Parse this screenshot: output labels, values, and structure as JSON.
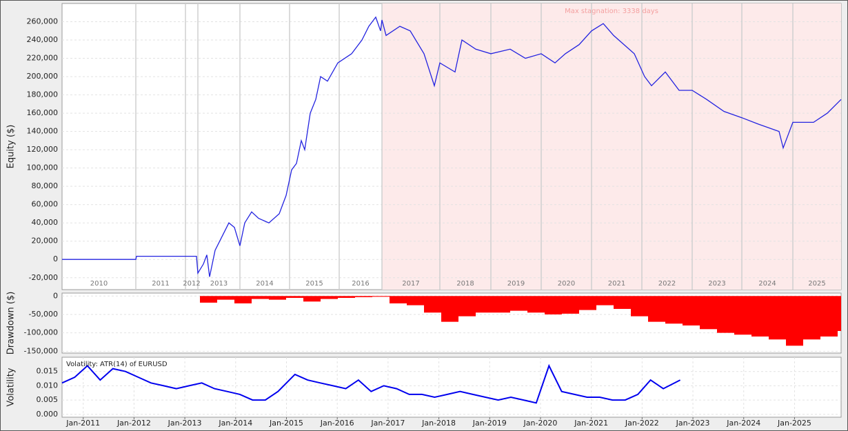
{
  "chart_data": [
    {
      "type": "line",
      "ylabel": "Equity ($)",
      "annotation": "Max stagnation: 3338 days",
      "stagnation_start": 464,
      "stagnation_color": "#fdeaea",
      "xlim": [
        0,
        1130
      ],
      "ylim": [
        -33000,
        280000
      ],
      "yticks": [
        {
          "value": 260000,
          "label": "260,000"
        },
        {
          "value": 240000,
          "label": "240,000"
        },
        {
          "value": 220000,
          "label": "220,000"
        },
        {
          "value": 200000,
          "label": "200,000"
        },
        {
          "value": 180000,
          "label": "180,000"
        },
        {
          "value": 160000,
          "label": "160,000"
        },
        {
          "value": 140000,
          "label": "140,000"
        },
        {
          "value": 120000,
          "label": "120,000"
        },
        {
          "value": 100000,
          "label": "100,000"
        },
        {
          "value": 80000,
          "label": "80,000"
        },
        {
          "value": 60000,
          "label": "60,000"
        },
        {
          "value": 40000,
          "label": "40,000"
        },
        {
          "value": 20000,
          "label": "20,000"
        },
        0,
        {
          "value": -20000,
          "label": "-20,000"
        }
      ],
      "year_labels": [
        "2010",
        "2011",
        "2012",
        "2013",
        "2014",
        "2015",
        "2016",
        "2017",
        "2018",
        "2019",
        "2020",
        "2021",
        "2022",
        "2023",
        "2024",
        "2025"
      ],
      "year_edges": [
        107,
        179,
        197,
        258,
        330,
        402,
        464,
        548,
        622,
        695,
        768,
        841,
        914,
        986,
        1060
      ],
      "grid": true,
      "series": [
        {
          "color": "#2323e0",
          "x": [
            0,
            107,
            108,
            195,
            197,
            205,
            210,
            214,
            222,
            232,
            242,
            250,
            258,
            265,
            275,
            285,
            300,
            315,
            325,
            333,
            340,
            347,
            352,
            360,
            368,
            375,
            385,
            400,
            420,
            435,
            445,
            455,
            462,
            464,
            470,
            490,
            505,
            525,
            540,
            548,
            570,
            580,
            600,
            622,
            650,
            672,
            695,
            715,
            730,
            750,
            768,
            785,
            800,
            830,
            845,
            855,
            875,
            895,
            914,
            935,
            960,
            986,
            1010,
            1040,
            1046,
            1060,
            1090,
            1110,
            1130
          ],
          "values": [
            0,
            0,
            3500,
            3500,
            -15000,
            -5000,
            5000,
            -19000,
            10000,
            25000,
            40000,
            35000,
            15000,
            40000,
            52000,
            45000,
            40000,
            50000,
            70000,
            98000,
            105000,
            130000,
            120000,
            160000,
            175000,
            200000,
            195000,
            215000,
            225000,
            240000,
            255000,
            265000,
            250000,
            262000,
            245000,
            255000,
            250000,
            225000,
            190000,
            215000,
            205000,
            240000,
            230000,
            225000,
            230000,
            220000,
            225000,
            215000,
            225000,
            235000,
            250000,
            258000,
            245000,
            225000,
            200000,
            190000,
            205000,
            185000,
            185000,
            175000,
            162000,
            155000,
            148000,
            140000,
            122000,
            150000,
            150000,
            160000,
            175000
          ]
        }
      ]
    },
    {
      "type": "bar",
      "ylabel": "Drawdown ($)",
      "xlim": [
        0,
        1130
      ],
      "ylim": [
        -155000,
        8000
      ],
      "grid": true,
      "yticks": [
        0,
        {
          "value": -50000,
          "label": "-50,000"
        },
        {
          "value": -100000,
          "label": "-100,000"
        },
        {
          "value": -150000,
          "label": "-150,000"
        }
      ],
      "series": [
        {
          "color": "#ff0000",
          "x": [
            200,
            225,
            250,
            275,
            300,
            325,
            350,
            375,
            400,
            425,
            450,
            475,
            500,
            525,
            550,
            575,
            600,
            625,
            650,
            675,
            700,
            725,
            750,
            775,
            800,
            825,
            850,
            875,
            900,
            925,
            950,
            975,
            1000,
            1025,
            1050,
            1075,
            1100,
            1125
          ],
          "values": [
            -18000,
            -10000,
            -20000,
            -8000,
            -10000,
            -5000,
            -15000,
            -8000,
            -5000,
            -3000,
            -2000,
            -20000,
            -25000,
            -45000,
            -70000,
            -55000,
            -45000,
            -45000,
            -40000,
            -45000,
            -50000,
            -48000,
            -38000,
            -25000,
            -35000,
            -55000,
            -70000,
            -75000,
            -80000,
            -90000,
            -100000,
            -105000,
            -110000,
            -118000,
            -135000,
            -118000,
            -110000,
            -95000
          ]
        }
      ]
    },
    {
      "type": "date-line",
      "ylabel": "Volatility",
      "xlim": [
        "2010-08",
        "2025-12"
      ],
      "ylim": [
        -0.001,
        0.02
      ],
      "grid": true,
      "yticks": [
        0.015,
        {
          "value": 0.01,
          "label": "0.010"
        },
        0.005,
        {
          "value": 0,
          "label": "0.000"
        }
      ],
      "xticks": [
        {
          "value": "2011-01",
          "label": "Jan-2011"
        },
        {
          "value": "2012-01",
          "label": "Jan-2012"
        },
        {
          "value": "2013-01",
          "label": "Jan-2013"
        },
        {
          "value": "2014-01",
          "label": "Jan-2014"
        },
        {
          "value": "2015-01",
          "label": "Jan-2015"
        },
        {
          "value": "2016-01",
          "label": "Jan-2016"
        },
        {
          "value": "2017-01",
          "label": "Jan-2017"
        },
        {
          "value": "2018-01",
          "label": "Jan-2018"
        },
        {
          "value": "2019-01",
          "label": "Jan-2019"
        },
        {
          "value": "2020-01",
          "label": "Jan-2020"
        },
        {
          "value": "2021-01",
          "label": "Jan-2021"
        },
        {
          "value": "2022-01",
          "label": "Jan-2022"
        },
        {
          "value": "2023-01",
          "label": "Jan-2023"
        },
        {
          "value": "2024-01",
          "label": "Jan-2024"
        },
        {
          "value": "2025-01",
          "label": "Jan-2025"
        }
      ],
      "series": [
        {
          "name": "Volatility: ATR(14) of EURUSD",
          "color": "#0000ee",
          "x": [
            "2010-08",
            "2010-11",
            "2011-02",
            "2011-05",
            "2011-08",
            "2011-11",
            "2012-02",
            "2012-05",
            "2012-08",
            "2012-11",
            "2013-02",
            "2013-05",
            "2013-08",
            "2013-11",
            "2014-02",
            "2014-05",
            "2014-08",
            "2014-11",
            "2015-03",
            "2015-06",
            "2015-09",
            "2015-12",
            "2016-03",
            "2016-06",
            "2016-09",
            "2016-12",
            "2017-03",
            "2017-06",
            "2017-09",
            "2017-12",
            "2018-03",
            "2018-06",
            "2018-09",
            "2018-12",
            "2019-03",
            "2019-06",
            "2019-09",
            "2019-12",
            "2020-03",
            "2020-06",
            "2020-09",
            "2020-12",
            "2021-03",
            "2021-06",
            "2021-09",
            "2021-12",
            "2022-03",
            "2022-06",
            "2022-10"
          ],
          "values": [
            0.011,
            0.013,
            0.017,
            0.012,
            0.016,
            0.015,
            0.013,
            0.011,
            0.01,
            0.009,
            0.01,
            0.011,
            0.009,
            0.008,
            0.007,
            0.005,
            0.005,
            0.008,
            0.014,
            0.012,
            0.011,
            0.01,
            0.009,
            0.012,
            0.008,
            0.01,
            0.009,
            0.007,
            0.007,
            0.006,
            0.007,
            0.008,
            0.007,
            0.006,
            0.005,
            0.006,
            0.005,
            0.004,
            0.017,
            0.008,
            0.007,
            0.006,
            0.006,
            0.005,
            0.005,
            0.007,
            0.012,
            0.009,
            0.012
          ]
        }
      ]
    }
  ]
}
